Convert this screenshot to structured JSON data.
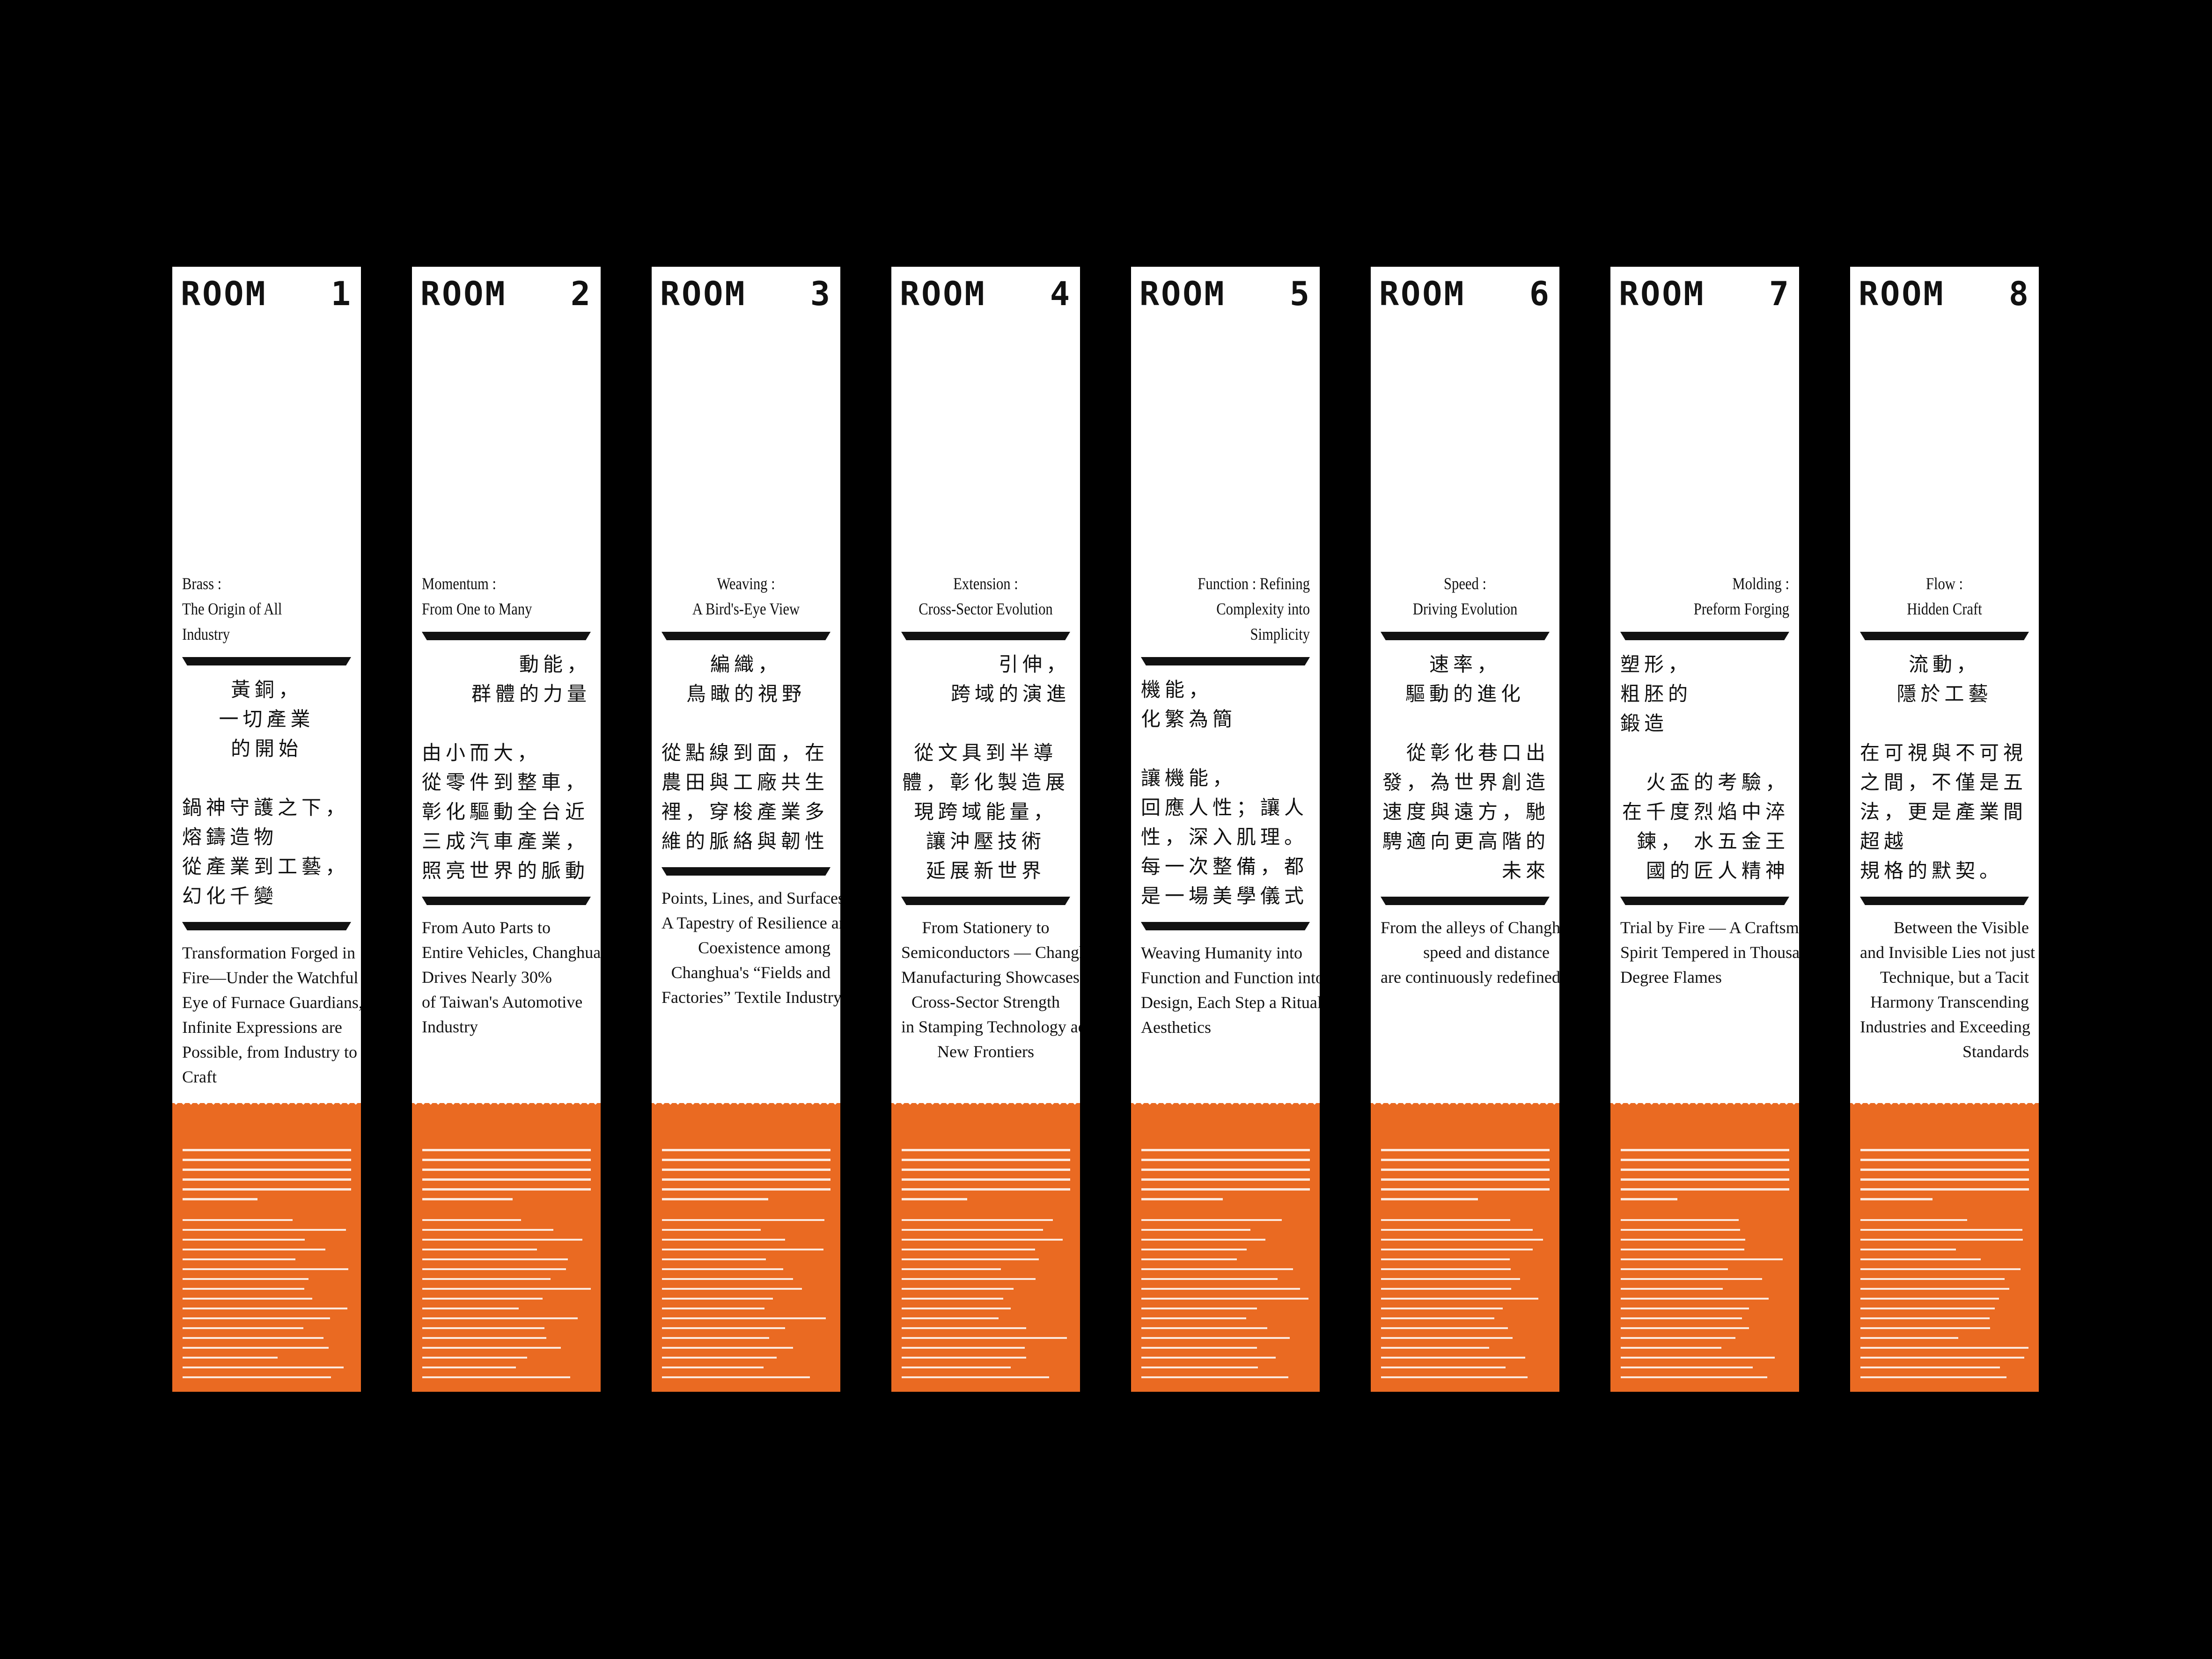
{
  "panels": [
    {
      "room": "ROOM",
      "number": "1",
      "title_en": [
        "Brass :",
        "The Origin of All Industry"
      ],
      "title_zh": [
        "黃銅，",
        "一切產業",
        "的開始"
      ],
      "body_zh": [
        "鍋神守護之下，",
        "熔鑄造物",
        "從產業到工藝，",
        "幻化千變"
      ],
      "subtitle_en": [
        "Transformation Forged in",
        "Fire—Under the Watchful",
        "Eye of Furnace Guardians,",
        "Infinite Expressions are",
        "Possible, from Industry to",
        "Craft"
      ]
    },
    {
      "room": "ROOM",
      "number": "2",
      "title_en": [
        "Momentum :",
        "From One to Many"
      ],
      "title_zh": [
        "動能，",
        "群體的力量"
      ],
      "body_zh": [
        "由小而大，",
        "從零件到整車，",
        "彰化驅動全台近",
        "三成汽車產業，",
        "照亮世界的脈動"
      ],
      "subtitle_en": [
        "From Auto Parts to",
        "Entire Vehicles, Changhua",
        "Drives Nearly 30%",
        "of Taiwan's Automotive",
        "Industry"
      ]
    },
    {
      "room": "ROOM",
      "number": "3",
      "title_en": [
        "Weaving :",
        "A Bird's-Eye View"
      ],
      "title_zh": [
        "編織，",
        "鳥瞰的視野"
      ],
      "body_zh": [
        "從點線到面，在",
        "農田與工廠共生",
        "裡，穿梭產業多",
        "維的脈絡與韌性"
      ],
      "subtitle_en": [
        "Points, Lines, and Surfaces—",
        "A Tapestry of Resilience and",
        "Coexistence among",
        "Changhua's “Fields and",
        "Factories” Textile Industry"
      ]
    },
    {
      "room": "ROOM",
      "number": "4",
      "title_en": [
        "Extension :",
        "Cross-Sector Evolution"
      ],
      "title_zh": [
        "引伸，",
        "跨域的演進"
      ],
      "body_zh": [
        "從文具到半導",
        "體，彰化製造展",
        "現跨域能量，",
        "讓沖壓技術",
        "延展新世界"
      ],
      "subtitle_en": [
        "From Stationery to",
        "Semiconductors — Changhua",
        "Manufacturing Showcases its",
        "Cross-Sector Strength",
        "in Stamping Technology across",
        "New Frontiers"
      ]
    },
    {
      "room": "ROOM",
      "number": "5",
      "title_en": [
        "Function : Refining",
        "Complexity into Simplicity"
      ],
      "title_zh": [
        "機能，",
        "化繁為簡"
      ],
      "body_zh": [
        "讓機能，",
        "回應人性；讓人",
        "性，深入肌理。",
        "每一次整備，都",
        "是一場美學儀式"
      ],
      "subtitle_en": [
        "Weaving Humanity into",
        "Function and Function into",
        "Design, Each Step a Ritual of",
        "Aesthetics"
      ]
    },
    {
      "room": "ROOM",
      "number": "6",
      "title_en": [
        "Speed :",
        "Driving Evolution"
      ],
      "title_zh": [
        "速率，",
        "驅動的進化"
      ],
      "body_zh": [
        "從彰化巷口出",
        "發，為世界創造",
        "速度與遠方，馳",
        "騁適向更高階的",
        "未來"
      ],
      "subtitle_en": [
        "From the alleys of Changhua,",
        "speed and distance",
        "are continuously redefined"
      ]
    },
    {
      "room": "ROOM",
      "number": "7",
      "title_en": [
        "Molding :",
        "Preform Forging"
      ],
      "title_zh": [
        "塑形，",
        "粗胚的",
        "鍛造"
      ],
      "body_zh": [
        "火盃的考驗，",
        "在千度烈焰中淬",
        "鍊， 水五金王",
        "國的匠人精神"
      ],
      "subtitle_en": [
        "Trial by Fire — A Craftsman's",
        "Spirit Tempered in Thousand",
        "Degree Flames"
      ]
    },
    {
      "room": "ROOM",
      "number": "8",
      "title_en": [
        "Flow :",
        "Hidden Craft"
      ],
      "title_zh": [
        "流動，",
        "隱於工藝"
      ],
      "body_zh": [
        "在可視與不可視",
        "之間，不僅是五",
        "法，更是產業間",
        "超越",
        "規格的默契。"
      ],
      "subtitle_en": [
        "Between the Visible",
        "and Invisible Lies not just",
        "Technique, but a Tacit",
        "Harmony Transcending",
        "Industries and Exceeding",
        "Standards"
      ]
    }
  ]
}
